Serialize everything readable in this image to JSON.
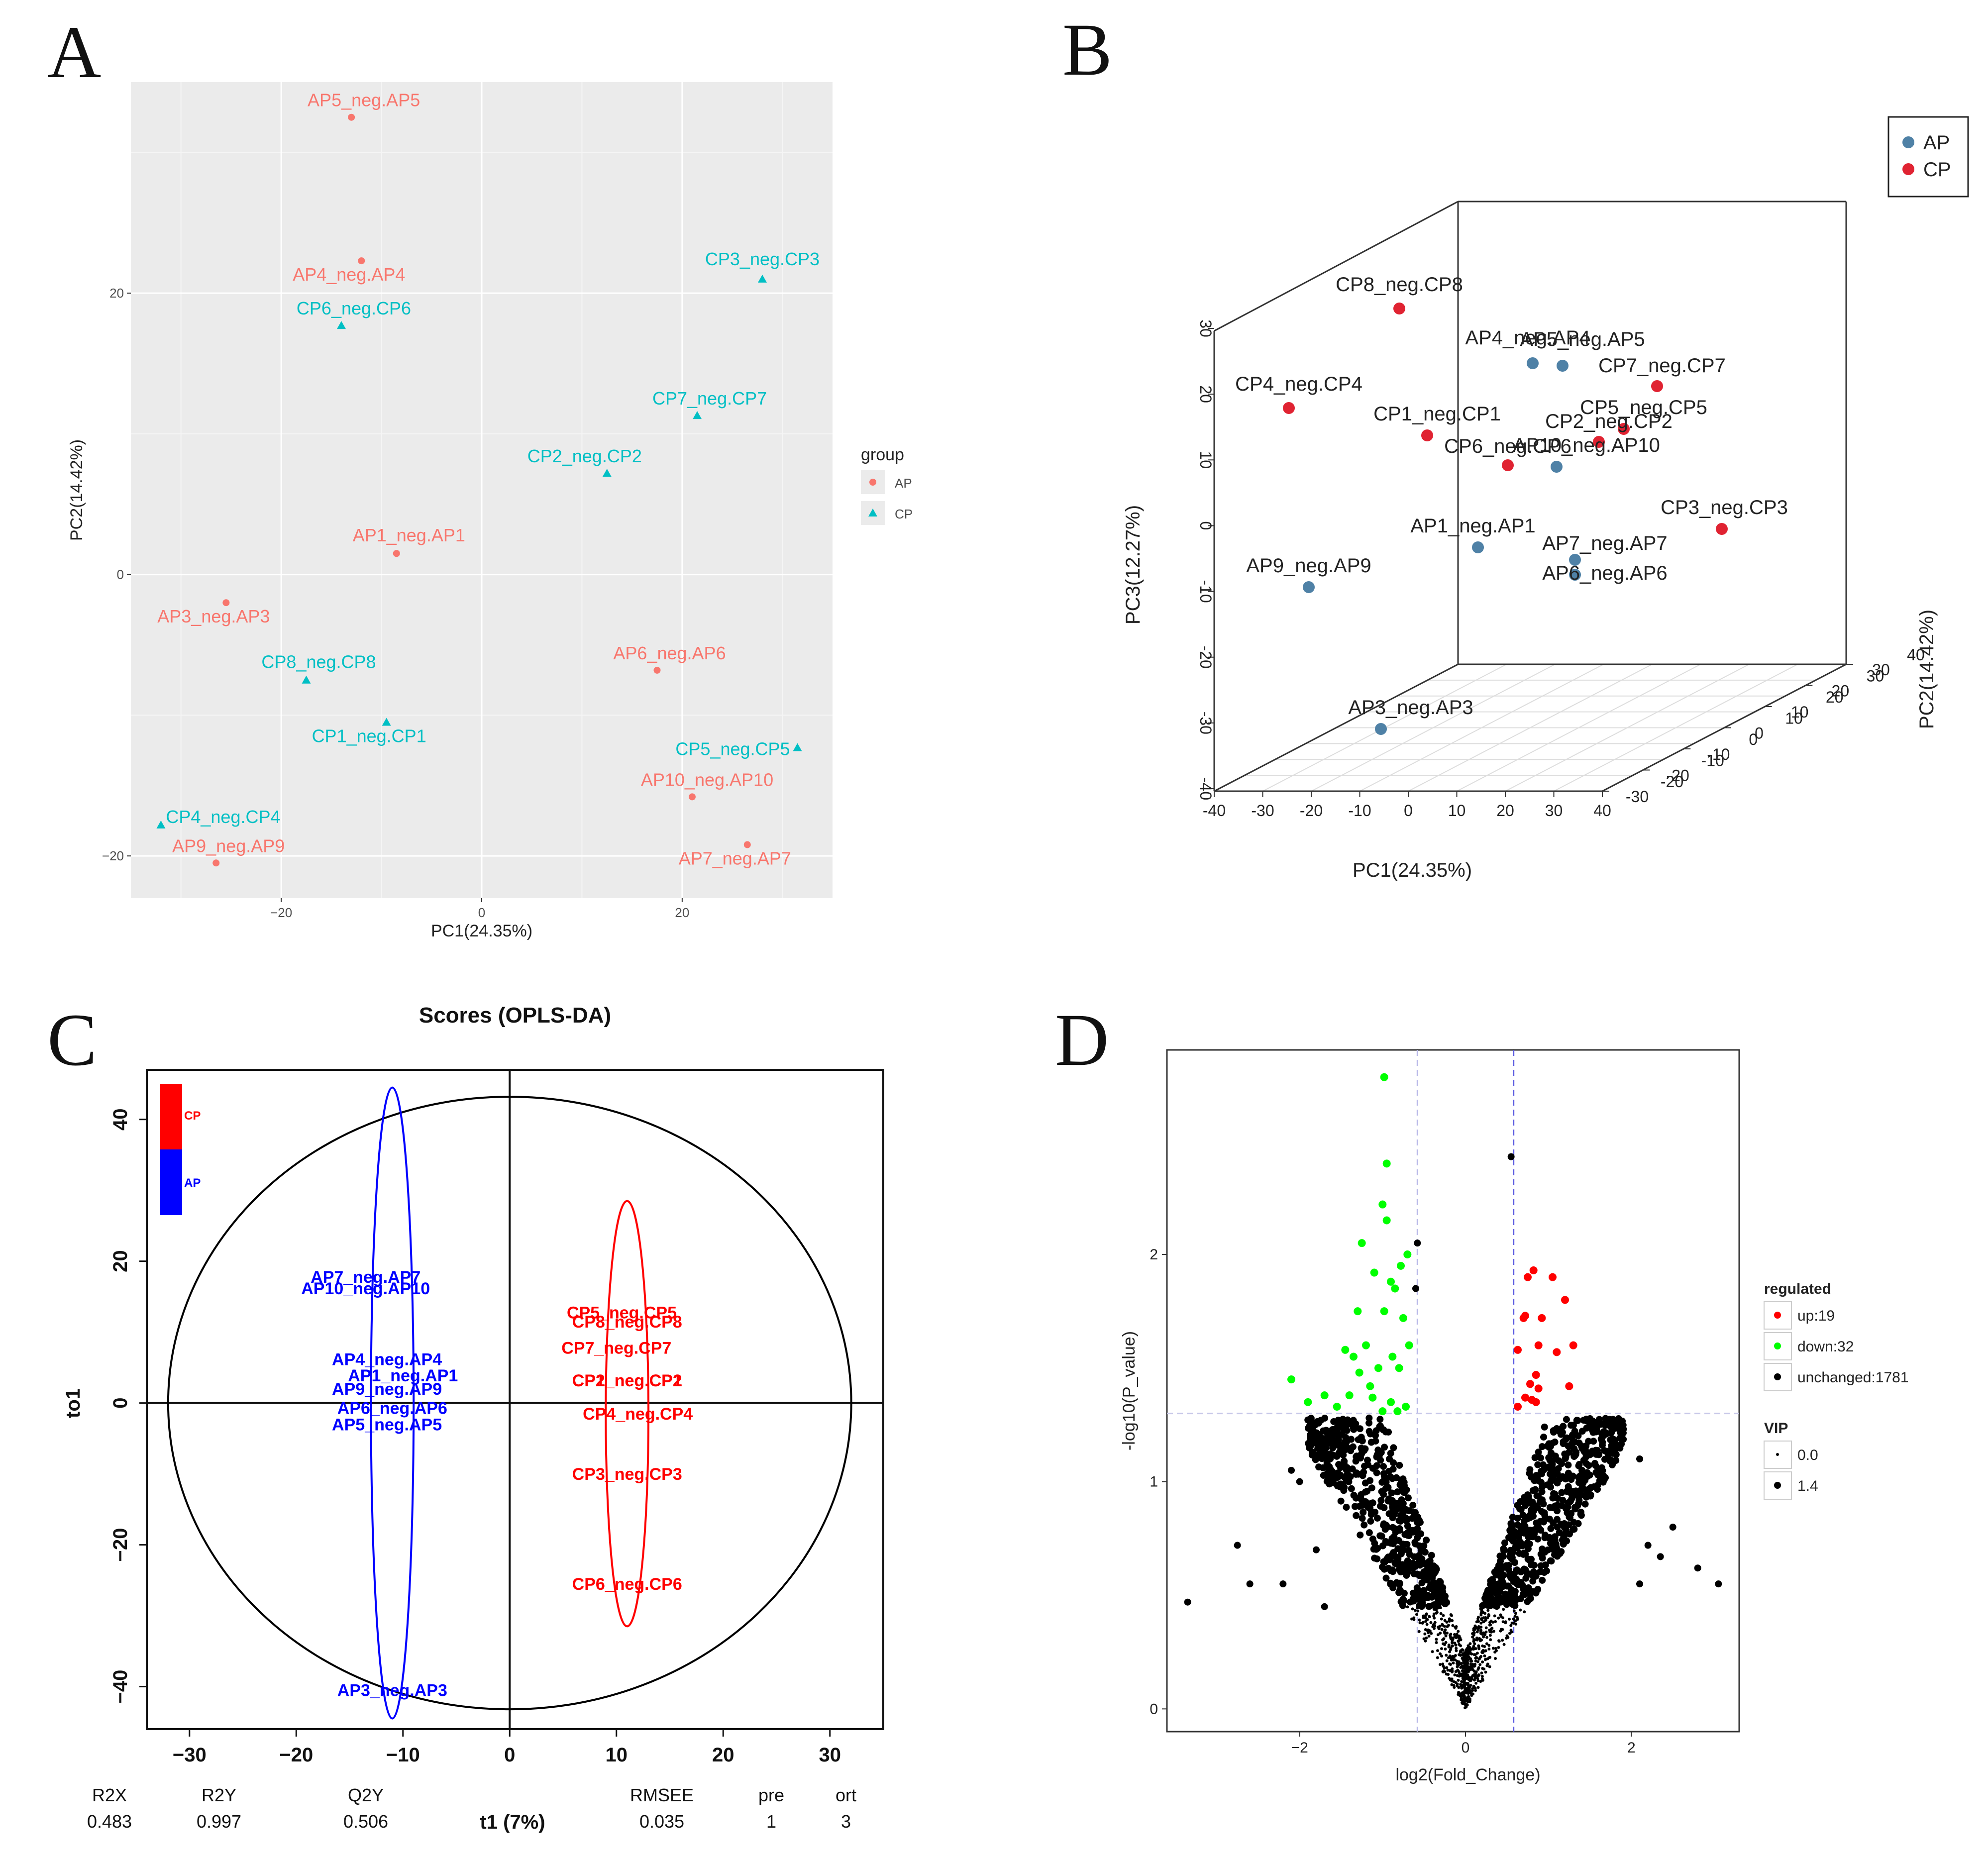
{
  "chart_data": [
    {
      "panel": "A",
      "type": "scatter",
      "xlabel": "PC1(24.35%)",
      "ylabel": "PC2(14.42%)",
      "xlim": [
        -35,
        35
      ],
      "ylim": [
        -23,
        35
      ],
      "xticks": [
        -20,
        0,
        20
      ],
      "yticks": [
        -20,
        0,
        20
      ],
      "legend": {
        "title": "group",
        "position": "right",
        "entries": [
          {
            "name": "AP",
            "color": "#F8766D",
            "shape": "circle"
          },
          {
            "name": "CP",
            "color": "#00BFC4",
            "shape": "triangle"
          }
        ]
      },
      "points": [
        {
          "label": "AP5_neg.AP5",
          "group": "AP",
          "x": -13,
          "y": 32.5
        },
        {
          "label": "AP4_neg.AP4",
          "group": "AP",
          "x": -12,
          "y": 22.3
        },
        {
          "label": "CP6_neg.CP6",
          "group": "CP",
          "x": -14,
          "y": 17.7
        },
        {
          "label": "CP3_neg.CP3",
          "group": "CP",
          "x": 28,
          "y": 21
        },
        {
          "label": "CP7_neg.CP7",
          "group": "CP",
          "x": 21.5,
          "y": 11.3
        },
        {
          "label": "CP2_neg.CP2",
          "group": "CP",
          "x": 12.5,
          "y": 7.2
        },
        {
          "label": "AP1_neg.AP1",
          "group": "AP",
          "x": -8.5,
          "y": 1.5
        },
        {
          "label": "AP3_neg.AP3",
          "group": "AP",
          "x": -25.5,
          "y": -2
        },
        {
          "label": "CP8_neg.CP8",
          "group": "CP",
          "x": -17.5,
          "y": -7.5
        },
        {
          "label": "AP6_neg.AP6",
          "group": "AP",
          "x": 17.5,
          "y": -6.8
        },
        {
          "label": "CP1_neg.CP1",
          "group": "CP",
          "x": -9.5,
          "y": -10.5
        },
        {
          "label": "CP5_neg.CP5",
          "group": "CP",
          "x": 31.5,
          "y": -12.3
        },
        {
          "label": "AP10_neg.AP10",
          "group": "AP",
          "x": 21,
          "y": -15.8
        },
        {
          "label": "CP4_neg.CP4",
          "group": "CP",
          "x": -32,
          "y": -17.8
        },
        {
          "label": "AP9_neg.AP9",
          "group": "AP",
          "x": -26.5,
          "y": -20.5
        },
        {
          "label": "AP7_neg.AP7",
          "group": "AP",
          "x": 26.5,
          "y": -19.2
        }
      ]
    },
    {
      "panel": "B",
      "type": "scatter",
      "subtype": "3d",
      "xlabel": "PC1(24.35%)",
      "ylabel": "PC2(14.42%)",
      "zlabel": "PC3(12.27%)",
      "xticks": [
        -40,
        -30,
        -20,
        -10,
        0,
        10,
        20,
        30,
        40
      ],
      "yticks": [
        -20,
        -10,
        0,
        10,
        20,
        30,
        40
      ],
      "yticks_alt": [
        -30,
        -20,
        -10,
        0,
        10,
        20,
        30
      ],
      "zticks": [
        -40,
        -30,
        -20,
        -10,
        0,
        10,
        20,
        30
      ],
      "legend": {
        "position": "top-right",
        "entries": [
          {
            "name": "AP",
            "color": "#4F81A6"
          },
          {
            "name": "CP",
            "color": "#E02332"
          }
        ]
      },
      "points": [
        {
          "label": "CP8_neg.CP8",
          "group": "CP"
        },
        {
          "label": "AP4_neg.AP4",
          "group": "AP"
        },
        {
          "label": "AP5_neg.AP5",
          "group": "AP"
        },
        {
          "label": "CP7_neg.CP7",
          "group": "CP"
        },
        {
          "label": "CP4_neg.CP4",
          "group": "CP"
        },
        {
          "label": "CP1_neg.CP1",
          "group": "CP"
        },
        {
          "label": "CP5_neg.CP5",
          "group": "CP"
        },
        {
          "label": "CP2_neg.CP2",
          "group": "CP"
        },
        {
          "label": "CP6_neg.CP6",
          "group": "CP"
        },
        {
          "label": "AP10_neg.AP10",
          "group": "AP"
        },
        {
          "label": "CP3_neg.CP3",
          "group": "CP"
        },
        {
          "label": "AP1_neg.AP1",
          "group": "AP"
        },
        {
          "label": "AP7_neg.AP7",
          "group": "AP"
        },
        {
          "label": "AP6_neg.AP6",
          "group": "AP"
        },
        {
          "label": "AP9_neg.AP9",
          "group": "AP"
        },
        {
          "label": "AP3_neg.AP3",
          "group": "AP"
        }
      ]
    },
    {
      "panel": "C",
      "type": "scatter",
      "title": "Scores (OPLS-DA)",
      "xlabel": "t1 (7%)",
      "ylabel": "to1",
      "xlim": [
        -34,
        35
      ],
      "ylim": [
        -46,
        47
      ],
      "xticks": [
        -30,
        -20,
        -10,
        0,
        10,
        20,
        30
      ],
      "yticks": [
        -40,
        -20,
        0,
        20,
        40
      ],
      "legend": {
        "position": "top-left",
        "entries": [
          {
            "name": "CP",
            "color": "#FF0000"
          },
          {
            "name": "AP",
            "color": "#0000FF"
          }
        ]
      },
      "ellipses": [
        {
          "name": "T2 ellipse",
          "cx": 0,
          "cy": 0,
          "rx": 32,
          "ry": 43.2,
          "color": "#000000"
        },
        {
          "name": "AP",
          "cx": -11,
          "cy": 0,
          "rx": 2,
          "ry": 44.5,
          "color": "#0000FF"
        },
        {
          "name": "CP",
          "cx": 11,
          "cy": -1.5,
          "rx": 2,
          "ry": 30,
          "color": "#FF0000"
        }
      ],
      "points": [
        {
          "label": "AP7_neg.AP7",
          "group": "AP",
          "x": -13.5,
          "y": 17.8
        },
        {
          "label": "AP10_neg.AP10",
          "group": "AP",
          "x": -13.5,
          "y": 16.2
        },
        {
          "label": "AP4_neg.AP4",
          "group": "AP",
          "x": -11.5,
          "y": 6.2
        },
        {
          "label": "AP1_neg.AP1",
          "group": "AP",
          "x": -10,
          "y": 3.9
        },
        {
          "label": "AP9_neg.AP9",
          "group": "AP",
          "x": -11.5,
          "y": 2
        },
        {
          "label": "AP6_neg.AP6",
          "group": "AP",
          "x": -11,
          "y": -0.7
        },
        {
          "label": "AP5_neg.AP5",
          "group": "AP",
          "x": -11.5,
          "y": -3
        },
        {
          "label": "AP3_neg.AP3",
          "group": "AP",
          "x": -11,
          "y": -40.5
        },
        {
          "label": "CP5_neg.CP5",
          "group": "CP",
          "x": 10.5,
          "y": 12.8
        },
        {
          "label": "CP8_neg.CP8",
          "group": "CP",
          "x": 11,
          "y": 11.5
        },
        {
          "label": "CP7_neg.CP7",
          "group": "CP",
          "x": 10,
          "y": 7.8
        },
        {
          "label": "CP1_neg.CP1",
          "group": "CP",
          "x": 11,
          "y": 3.2
        },
        {
          "label": "CP2_neg.CP2",
          "group": "CP",
          "x": 11,
          "y": 3.2
        },
        {
          "label": "CP4_neg.CP4",
          "group": "CP",
          "x": 12,
          "y": -1.5
        },
        {
          "label": "CP3_neg.CP3",
          "group": "CP",
          "x": 11,
          "y": -10
        },
        {
          "label": "CP6_neg.CP6",
          "group": "CP",
          "x": 11,
          "y": -25.5
        }
      ],
      "stats": {
        "headers": [
          "R2X",
          "R2Y",
          "Q2Y",
          "RMSEE",
          "pre",
          "ort"
        ],
        "values": [
          "0.483",
          "0.997",
          "0.506",
          "0.035",
          "1",
          "3"
        ]
      }
    },
    {
      "panel": "D",
      "type": "scatter",
      "subtype": "volcano",
      "xlabel": "log2(Fold_Change)",
      "ylabel": "-log10(P_value)",
      "xlim": [
        -3.6,
        3.3
      ],
      "ylim": [
        -0.1,
        2.9
      ],
      "xticks": [
        -2,
        0,
        2
      ],
      "yticks": [
        0,
        1,
        2
      ],
      "thresholds": {
        "fold_change": [
          -0.58,
          0.58
        ],
        "p_value": 1.3
      },
      "legend": {
        "position": "right",
        "regulated_title": "regulated",
        "regulated": [
          {
            "name": "up:19",
            "color": "#FF0000",
            "count": 19
          },
          {
            "name": "down:32",
            "color": "#00FF00",
            "count": 32
          },
          {
            "name": "unchanged:1781",
            "color": "#000000",
            "count": 1781
          }
        ],
        "vip_title": "VIP",
        "vip": [
          "0.0",
          "1.4"
        ]
      },
      "up_points": [
        [
          0.63,
          1.58
        ],
        [
          0.63,
          1.33
        ],
        [
          0.7,
          1.72
        ],
        [
          0.72,
          1.73
        ],
        [
          0.72,
          1.37
        ],
        [
          0.75,
          1.9
        ],
        [
          0.78,
          1.43
        ],
        [
          0.8,
          1.36
        ],
        [
          0.82,
          1.93
        ],
        [
          0.85,
          1.47
        ],
        [
          0.85,
          1.35
        ],
        [
          0.88,
          1.6
        ],
        [
          0.88,
          1.41
        ],
        [
          0.92,
          1.72
        ],
        [
          1.05,
          1.9
        ],
        [
          1.1,
          1.57
        ],
        [
          1.2,
          1.8
        ],
        [
          1.25,
          1.42
        ],
        [
          1.3,
          1.6
        ]
      ],
      "down_points": [
        [
          -0.7,
          2.0
        ],
        [
          -0.68,
          1.6
        ],
        [
          -0.75,
          1.72
        ],
        [
          -0.72,
          1.33
        ],
        [
          -0.78,
          1.95
        ],
        [
          -0.8,
          1.5
        ],
        [
          -0.82,
          1.31
        ],
        [
          -0.85,
          1.85
        ],
        [
          -0.88,
          1.55
        ],
        [
          -0.9,
          1.88
        ],
        [
          -0.9,
          1.35
        ],
        [
          -0.95,
          2.15
        ],
        [
          -0.98,
          1.75
        ],
        [
          -1.0,
          1.31
        ],
        [
          -1.0,
          2.22
        ],
        [
          -1.05,
          1.5
        ],
        [
          -1.1,
          1.92
        ],
        [
          -1.12,
          1.37
        ],
        [
          -1.15,
          1.42
        ],
        [
          -1.2,
          1.6
        ],
        [
          -1.25,
          2.05
        ],
        [
          -1.28,
          1.48
        ],
        [
          -1.3,
          1.75
        ],
        [
          -1.35,
          1.55
        ],
        [
          -1.4,
          1.38
        ],
        [
          -1.45,
          1.58
        ],
        [
          -1.55,
          1.33
        ],
        [
          -1.7,
          1.38
        ],
        [
          -1.9,
          1.35
        ],
        [
          -2.1,
          1.45
        ],
        [
          -0.98,
          2.78
        ],
        [
          -0.95,
          2.4
        ]
      ]
    }
  ]
}
